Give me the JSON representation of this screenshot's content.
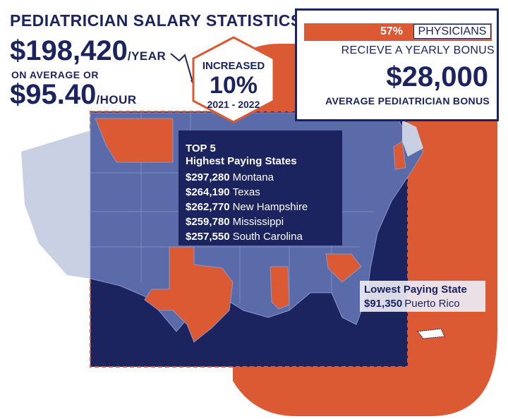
{
  "title": "PEDIATRICIAN SALARY STATISTICS",
  "salary": {
    "yearly": "$198,420",
    "yearly_unit": "/YEAR",
    "connector": "ON AVERAGE OR",
    "hourly": "$95.40",
    "hourly_unit": "/HOUR"
  },
  "increase": {
    "label": "INCREASED",
    "value": "10%",
    "period": "2021 - 2022"
  },
  "bonus": {
    "percent": "57%",
    "group": "PHYSICIANS",
    "description": "RECIEVE A YEARLY BONUS",
    "amount": "$28,000",
    "caption": "AVERAGE PEDIATRICIAN BONUS"
  },
  "top_states": {
    "title": "TOP 5",
    "subtitle": "Highest Paying States",
    "items": [
      {
        "amount": "$297,280",
        "state": "Montana"
      },
      {
        "amount": "$264,190",
        "state": "Texas"
      },
      {
        "amount": "$262,770",
        "state": "New Hampshire"
      },
      {
        "amount": "$259,780",
        "state": "Mississippi"
      },
      {
        "amount": "$257,550",
        "state": "South Carolina"
      }
    ]
  },
  "lowest_state": {
    "title": "Lowest Paying State",
    "amount": "$91,350",
    "state": "Puerto Rico"
  },
  "colors": {
    "navy": "#1c2460",
    "orange": "#dc5a33",
    "map_blue": "#5b6aa8",
    "map_light": "#c9d0e3"
  }
}
